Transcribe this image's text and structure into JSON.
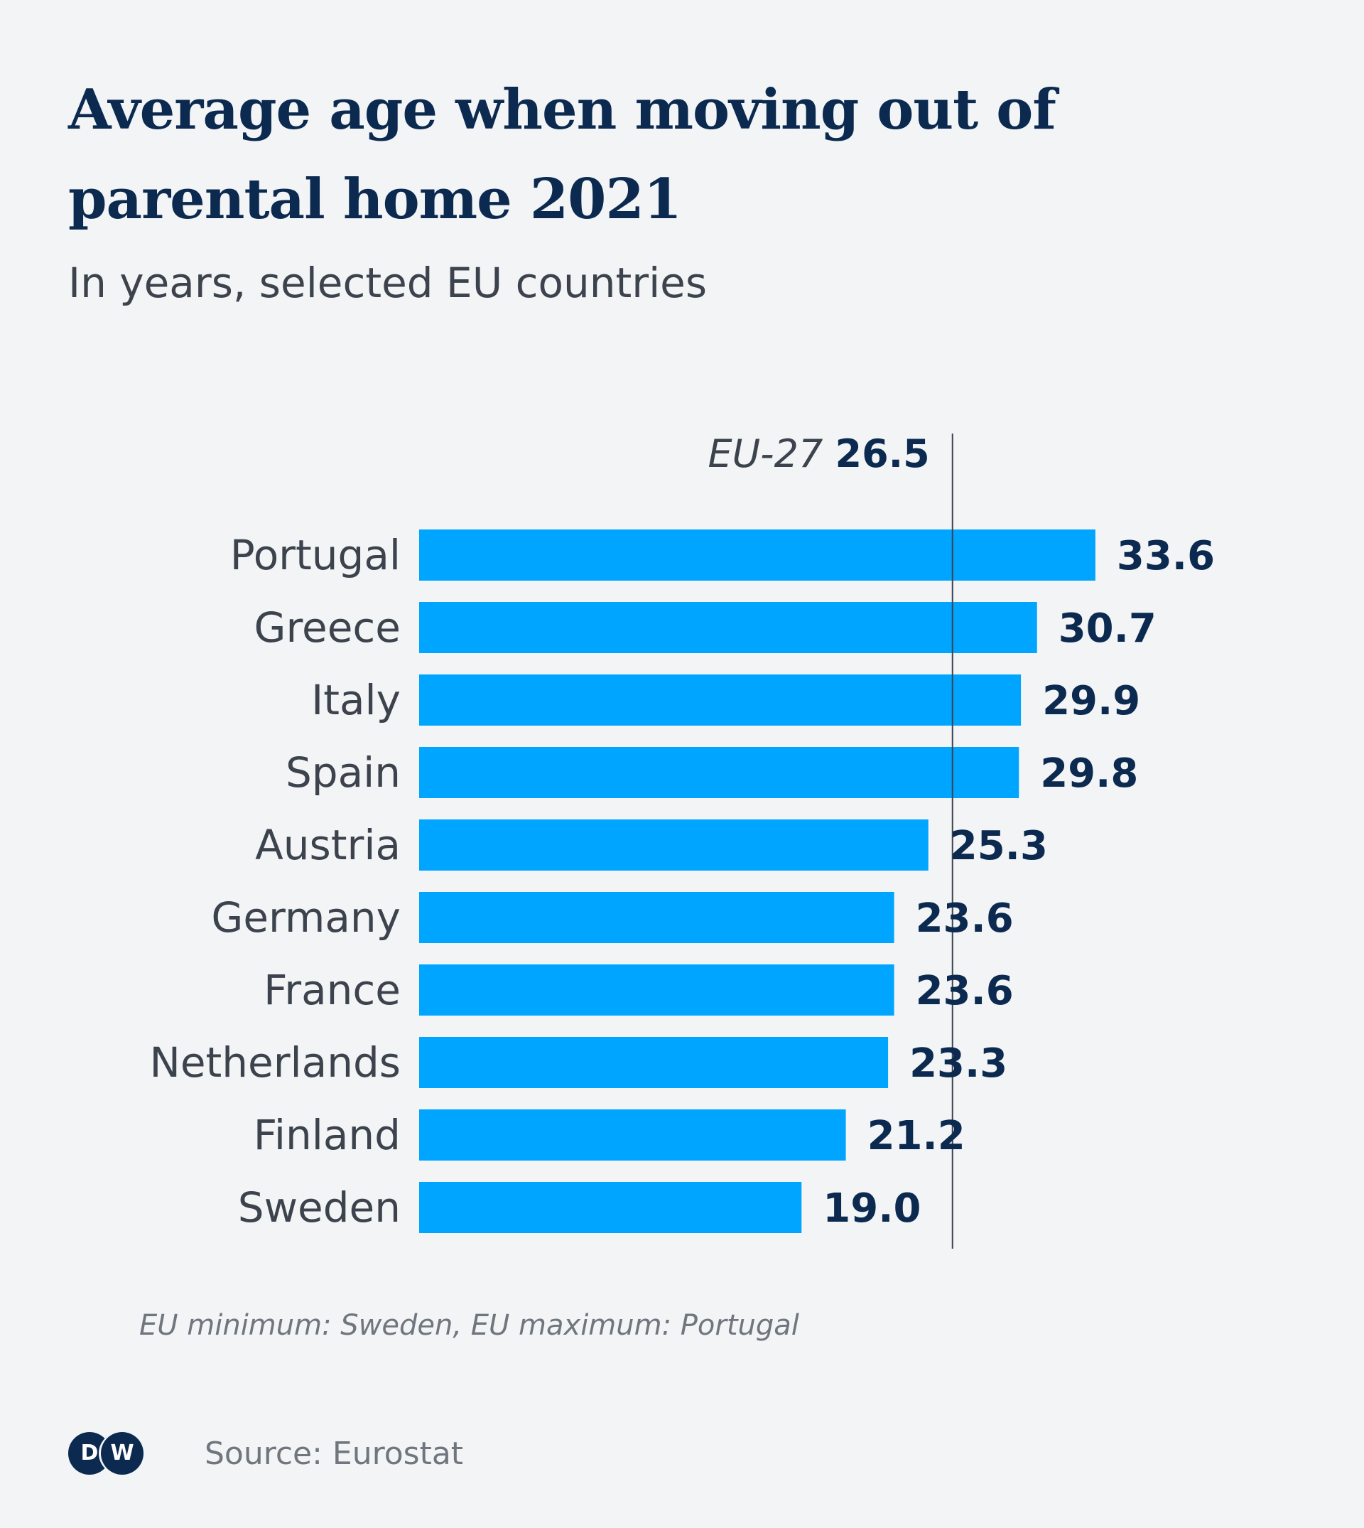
{
  "header": {
    "title": "Average age when moving out of parental home 2021",
    "subtitle": "In years, selected EU countries"
  },
  "chart_data": {
    "type": "bar",
    "orientation": "horizontal",
    "title": "Average age when moving out of parental home 2021",
    "subtitle": "In years, selected EU countries",
    "categories": [
      "Portugal",
      "Greece",
      "Italy",
      "Spain",
      "Austria",
      "Germany",
      "France",
      "Netherlands",
      "Finland",
      "Sweden"
    ],
    "values": [
      33.6,
      30.7,
      29.9,
      29.8,
      25.3,
      23.6,
      23.6,
      23.3,
      21.2,
      19.0
    ],
    "value_labels": [
      "33.6",
      "30.7",
      "29.9",
      "29.8",
      "25.3",
      "23.6",
      "23.6",
      "23.3",
      "21.2",
      "19.0"
    ],
    "xlim": [
      0,
      33.6
    ],
    "reference_line": {
      "label": "EU-27",
      "value": 26.5,
      "value_label": "26.5"
    },
    "grid": false,
    "bar_color": "#00a5ff",
    "label_color": "#3c434c",
    "value_color": "#0c2a4f",
    "annotation": "EU minimum: Sweden, EU maximum: Portugal",
    "source": "Source: Eurostat"
  },
  "footer": {
    "note": "EU minimum: Sweden, EU maximum: Portugal",
    "logo_left": "D",
    "logo_right": "W",
    "source": "Source: Eurostat"
  },
  "colors": {
    "background": "#f2f4f6",
    "bar": "#00a5ff",
    "title": "#0c2a4f",
    "reference_line": "#3c434c"
  }
}
